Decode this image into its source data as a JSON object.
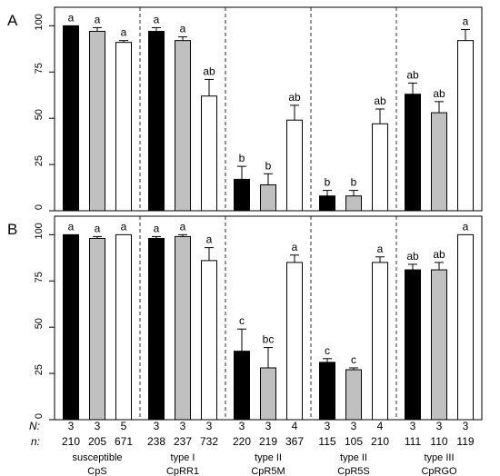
{
  "panels": [
    {
      "label": "A",
      "ylim": [
        0,
        110
      ],
      "yticks": [
        0,
        25,
        50,
        75,
        100
      ],
      "groups": [
        {
          "bars": [
            {
              "value": 100,
              "err": 0,
              "sig": "a"
            },
            {
              "value": 97,
              "err": 2,
              "sig": "a"
            },
            {
              "value": 91,
              "err": 1,
              "sig": "a"
            }
          ]
        },
        {
          "bars": [
            {
              "value": 97,
              "err": 2,
              "sig": "a"
            },
            {
              "value": 92,
              "err": 2,
              "sig": "a"
            },
            {
              "value": 62,
              "err": 9,
              "sig": "ab"
            }
          ]
        },
        {
          "bars": [
            {
              "value": 17,
              "err": 7,
              "sig": "b"
            },
            {
              "value": 14,
              "err": 6,
              "sig": "b"
            },
            {
              "value": 49,
              "err": 8,
              "sig": "ab"
            }
          ]
        },
        {
          "bars": [
            {
              "value": 8,
              "err": 3,
              "sig": "b"
            },
            {
              "value": 8,
              "err": 3,
              "sig": "b"
            },
            {
              "value": 47,
              "err": 8,
              "sig": "ab"
            }
          ]
        },
        {
          "bars": [
            {
              "value": 63,
              "err": 6,
              "sig": "ab"
            },
            {
              "value": 53,
              "err": 6,
              "sig": "ab"
            },
            {
              "value": 92,
              "err": 6,
              "sig": "a"
            }
          ]
        }
      ]
    },
    {
      "label": "B",
      "ylim": [
        0,
        110
      ],
      "yticks": [
        0,
        25,
        50,
        75,
        100
      ],
      "groups": [
        {
          "bars": [
            {
              "value": 100,
              "err": 0,
              "sig": "a"
            },
            {
              "value": 98,
              "err": 1,
              "sig": "a"
            },
            {
              "value": 100,
              "err": 0,
              "sig": "a"
            }
          ]
        },
        {
          "bars": [
            {
              "value": 98,
              "err": 1,
              "sig": "a"
            },
            {
              "value": 99,
              "err": 1,
              "sig": "a"
            },
            {
              "value": 86,
              "err": 7,
              "sig": "a"
            }
          ]
        },
        {
          "bars": [
            {
              "value": 37,
              "err": 12,
              "sig": "c"
            },
            {
              "value": 28,
              "err": 11,
              "sig": "bc"
            },
            {
              "value": 85,
              "err": 4,
              "sig": "a"
            }
          ]
        },
        {
          "bars": [
            {
              "value": 31,
              "err": 2,
              "sig": "c"
            },
            {
              "value": 27,
              "err": 1,
              "sig": "c"
            },
            {
              "value": 85,
              "err": 3,
              "sig": "a"
            }
          ]
        },
        {
          "bars": [
            {
              "value": 81,
              "err": 3,
              "sig": "ab"
            },
            {
              "value": 81,
              "err": 4,
              "sig": "ab"
            },
            {
              "value": 100,
              "err": 0,
              "sig": "a"
            }
          ]
        }
      ]
    }
  ],
  "bar_colors": [
    "#000000",
    "#c0c0c0",
    "#ffffff"
  ],
  "row_labels": {
    "N": "N:",
    "n": "n:"
  },
  "groups": [
    {
      "line1": "susceptible",
      "line2": "CpS",
      "N": [
        "3",
        "3",
        "5"
      ],
      "n": [
        "210",
        "205",
        "671"
      ]
    },
    {
      "line1": "type I",
      "line2": "CpRR1",
      "N": [
        "3",
        "3",
        "3"
      ],
      "n": [
        "238",
        "237",
        "732"
      ]
    },
    {
      "line1": "type II",
      "line2": "CpR5M",
      "N": [
        "3",
        "3",
        "4"
      ],
      "n": [
        "220",
        "219",
        "367"
      ]
    },
    {
      "line1": "type II",
      "line2": "CpR5S",
      "N": [
        "3",
        "3",
        "4"
      ],
      "n": [
        "115",
        "105",
        "210"
      ]
    },
    {
      "line1": "type III",
      "line2": "CpRGO",
      "N": [
        "3",
        "3",
        "3"
      ],
      "n": [
        "111",
        "110",
        "119"
      ]
    }
  ],
  "chart_data": [
    {
      "type": "bar",
      "title": "A",
      "categories": [
        "CpS",
        "CpRR1",
        "CpR5M",
        "CpR5S",
        "CpRGO"
      ],
      "series": [
        {
          "values": [
            100,
            97,
            17,
            8,
            63
          ],
          "errors": [
            0,
            2,
            7,
            3,
            6
          ],
          "sig": [
            "a",
            "a",
            "b",
            "b",
            "ab"
          ],
          "color": "#000000"
        },
        {
          "values": [
            97,
            92,
            14,
            8,
            53
          ],
          "errors": [
            2,
            2,
            6,
            3,
            6
          ],
          "sig": [
            "a",
            "a",
            "b",
            "b",
            "ab"
          ],
          "color": "#c0c0c0"
        },
        {
          "values": [
            91,
            62,
            49,
            47,
            92
          ],
          "errors": [
            1,
            9,
            8,
            8,
            6
          ],
          "sig": [
            "a",
            "ab",
            "ab",
            "ab",
            "a"
          ],
          "color": "#ffffff"
        }
      ],
      "ylim": [
        0,
        110
      ],
      "yticks": [
        0,
        25,
        50,
        75,
        100
      ],
      "grid": false
    },
    {
      "type": "bar",
      "title": "B",
      "categories": [
        "CpS",
        "CpRR1",
        "CpR5M",
        "CpR5S",
        "CpRGO"
      ],
      "series": [
        {
          "values": [
            100,
            98,
            37,
            31,
            81
          ],
          "errors": [
            0,
            1,
            12,
            2,
            3
          ],
          "sig": [
            "a",
            "a",
            "c",
            "c",
            "ab"
          ],
          "color": "#000000"
        },
        {
          "values": [
            98,
            99,
            28,
            27,
            81
          ],
          "errors": [
            1,
            1,
            11,
            1,
            4
          ],
          "sig": [
            "a",
            "a",
            "bc",
            "c",
            "ab"
          ],
          "color": "#c0c0c0"
        },
        {
          "values": [
            100,
            86,
            85,
            85,
            100
          ],
          "errors": [
            0,
            7,
            4,
            3,
            0
          ],
          "sig": [
            "a",
            "a",
            "a",
            "a",
            "a"
          ],
          "color": "#ffffff"
        }
      ],
      "ylim": [
        0,
        110
      ],
      "yticks": [
        0,
        25,
        50,
        75,
        100
      ],
      "grid": false
    }
  ]
}
